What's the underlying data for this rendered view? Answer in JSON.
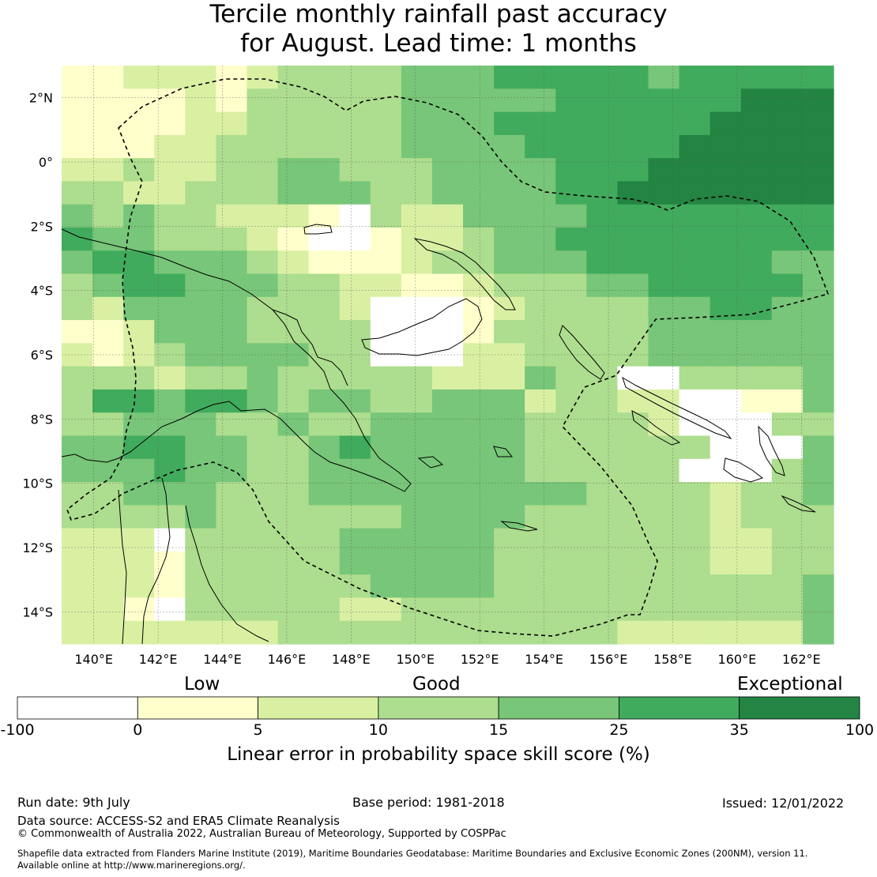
{
  "title": {
    "line1": "Tercile monthly rainfall past accuracy",
    "line2": "for August. Lead time: 1 months"
  },
  "map": {
    "lon_range": [
      139,
      163
    ],
    "lat_range": [
      -15,
      3
    ],
    "lon_ticks": [
      "140°E",
      "142°E",
      "144°E",
      "146°E",
      "148°E",
      "150°E",
      "152°E",
      "154°E",
      "156°E",
      "158°E",
      "160°E",
      "162°E"
    ],
    "lat_ticks": [
      "2°N",
      "0°",
      "2°S",
      "4°S",
      "6°S",
      "8°S",
      "10°S",
      "12°S",
      "14°S"
    ],
    "gridlines": true,
    "cell_degrees": 0.8,
    "boundary": "dashed EEZ outline of Papua New Guinea"
  },
  "legend": {
    "category_low": "Low",
    "category_good": "Good",
    "category_exceptional": "Exceptional",
    "bounds": [
      "-100",
      "0",
      "5",
      "10",
      "15",
      "25",
      "35",
      "100"
    ],
    "colors": [
      "#ffffff",
      "#ffffcc",
      "#d9f0a3",
      "#addd8e",
      "#78c679",
      "#41ab5d",
      "#238443"
    ],
    "label": "Linear error in probability space skill score (%)"
  },
  "footer": {
    "run_date": "Run date: 9th July",
    "base_period": "Base period: 1981-2018",
    "issued": "Issued: 12/01/2022",
    "data_source": "Data source: ACCESS-S2 and ERA5 Climate Reanalysis",
    "copyright": "© Commonwealth of Australia 2022, Australian Bureau of Meteorology, Supported by COSPPac",
    "shapefile_line1": "Shapefile data extracted from Flanders Marine Institute (2019), Maritime Boundaries Geodatabase: Maritime Boundaries and Exclusive Economic Zones (200NM), version 11.",
    "shapefile_line2": "Available online at http://www.marineregions.org/."
  },
  "chart_data": {
    "type": "heatmap",
    "title": "Tercile monthly rainfall past accuracy for August. Lead time: 1 months",
    "colorbar_label": "Linear error in probability space skill score (%)",
    "value_bins": [
      [
        -100,
        0
      ],
      [
        0,
        5
      ],
      [
        5,
        10
      ],
      [
        10,
        15
      ],
      [
        15,
        25
      ],
      [
        25,
        35
      ],
      [
        35,
        100
      ]
    ],
    "x_extent": [
      139,
      163
    ],
    "y_extent": [
      -15,
      3
    ],
    "rows_top_to_bottom_bin_index": [
      "1122212333344455555455555",
      "1111213333344444555555666",
      "1111223333344455555556666",
      "1112233333344445555566666",
      "2232233443334444555666666",
      "3322333444334444556666666",
      "4343322210322444455555555",
      "5443332100122344555555555",
      "4554443211123344455555544",
      "3455444332211233344555554",
      "3244443332000123333445544",
      "1124443333000133333444444",
      "2123444433000223333444444",
      "3332334333332224330033334",
      "3554554344334442332200114",
      "3344433433444443333200033",
      "4455443345444443333330004",
      "4445443344444443333300034",
      "3344433344444444433332334",
      "3333433333344443333332333",
      "2220333334444433333332233",
      "2221333334444433333332233",
      "2221333333444433333333334",
      "2210333332233333333333334",
      "2222222333333333332222224"
    ],
    "notes_scale": "rows span 3N to 15S; columns span 139E to 163E; digits index value_bins"
  }
}
